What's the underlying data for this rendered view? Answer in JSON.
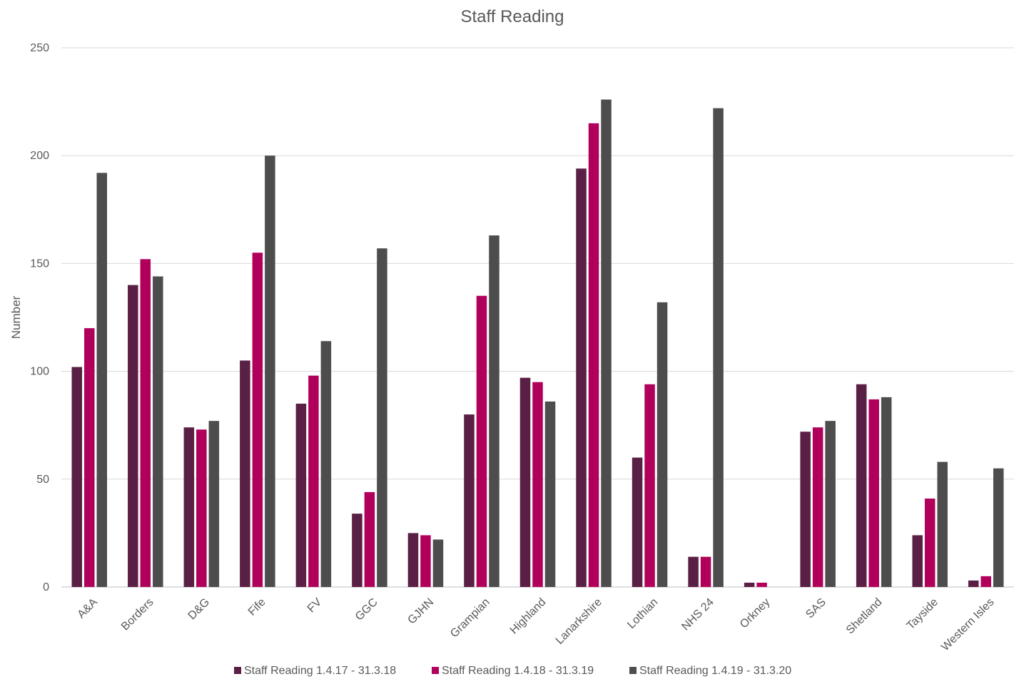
{
  "chart_data": {
    "type": "bar",
    "title": "Staff Reading",
    "xlabel": "",
    "ylabel": "Number",
    "ylim": [
      0,
      250
    ],
    "yticks": [
      0,
      50,
      100,
      150,
      200,
      250
    ],
    "grid": true,
    "legend_position": "bottom",
    "categories": [
      "A&A",
      "Borders",
      "D&G",
      "Fife",
      "FV",
      "GGC",
      "GJHN",
      "Grampian",
      "Highland",
      "Lanarkshire",
      "Lothian",
      "NHS 24",
      "Orkney",
      "SAS",
      "Shetland",
      "Tayside",
      "Western Isles"
    ],
    "series": [
      {
        "name": "Staff Reading 1.4.17 - 31.3.18",
        "color": "#5a1f45",
        "values": [
          102,
          140,
          74,
          105,
          85,
          34,
          25,
          80,
          97,
          194,
          60,
          14,
          2,
          72,
          94,
          24,
          3
        ]
      },
      {
        "name": "Staff Reading 1.4.18 - 31.3.19",
        "color": "#b0005c",
        "values": [
          120,
          152,
          73,
          155,
          98,
          44,
          24,
          135,
          95,
          215,
          94,
          14,
          2,
          74,
          87,
          41,
          5
        ]
      },
      {
        "name": "Staff Reading 1.4.19 - 31.3.20",
        "color": "#4d4d4d",
        "values": [
          192,
          144,
          77,
          200,
          114,
          157,
          22,
          163,
          86,
          226,
          132,
          222,
          0,
          77,
          88,
          58,
          55
        ]
      }
    ]
  }
}
